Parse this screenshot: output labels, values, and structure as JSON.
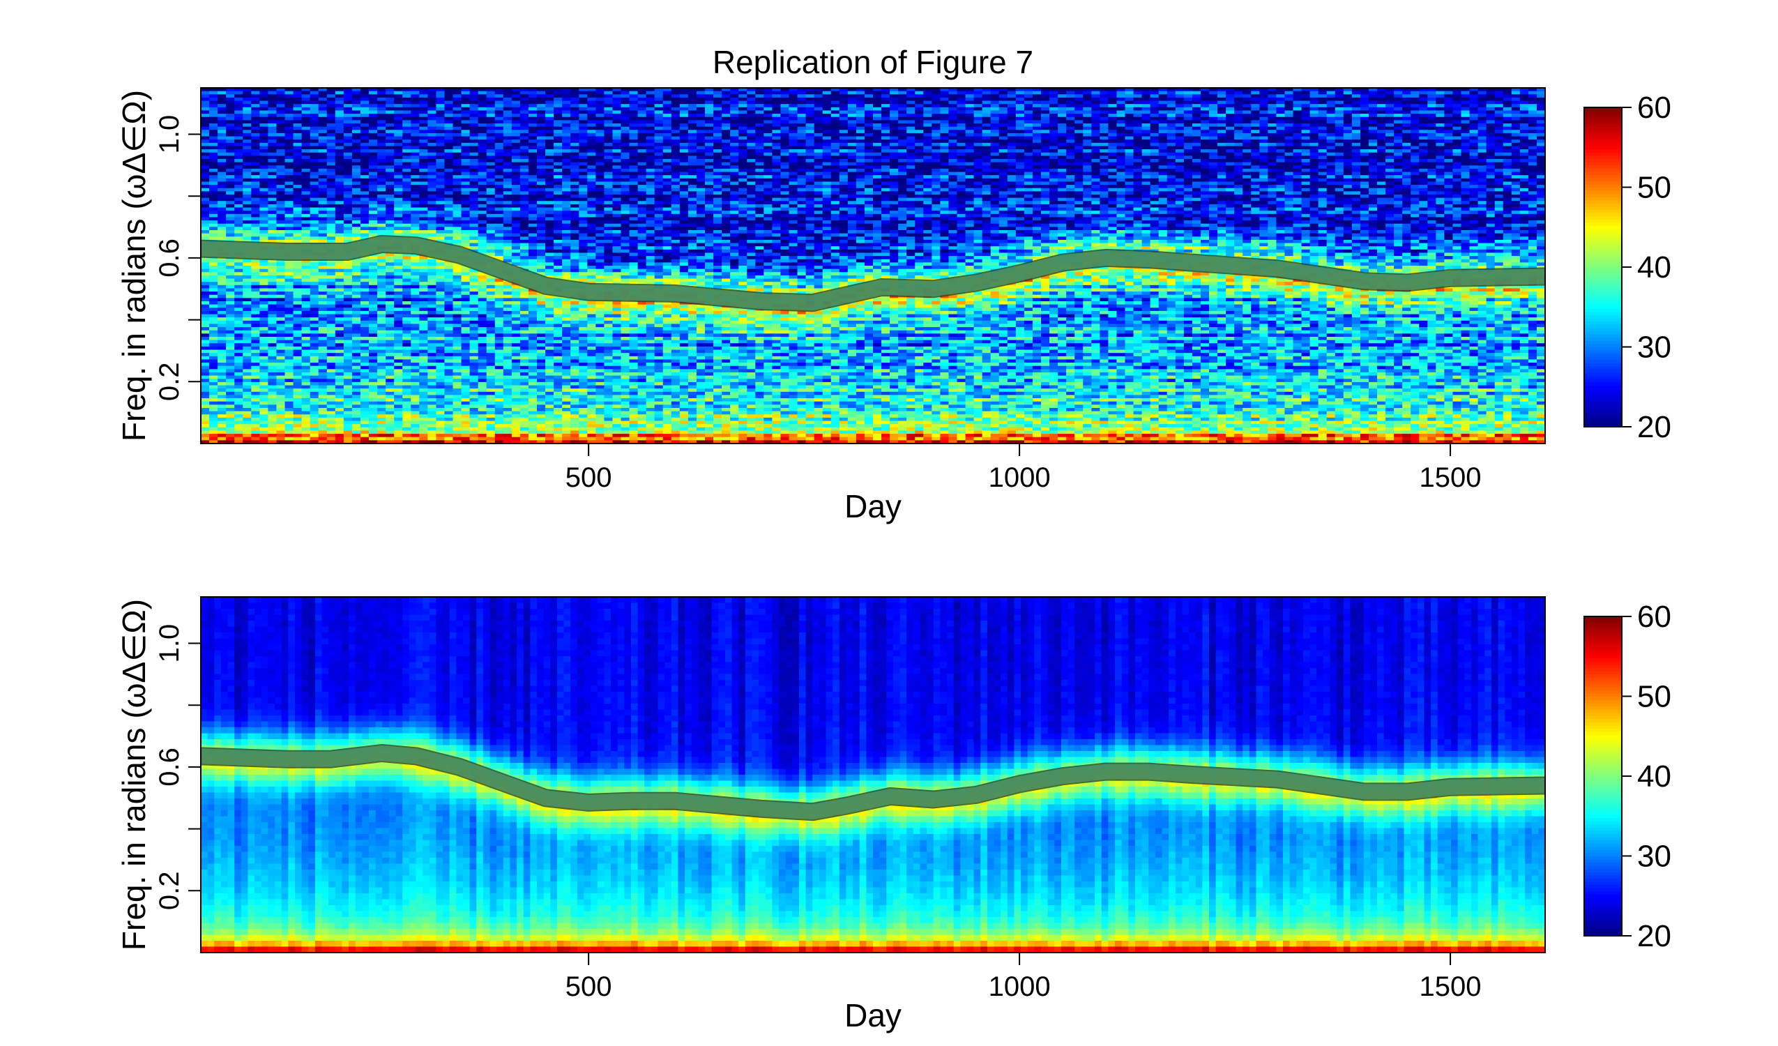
{
  "chart_data": [
    {
      "type": "heatmap",
      "title": "Replication of Figure 7",
      "xlabel": "Day",
      "ylabel": "Freq. in radians (ωΔ∈Ω)",
      "xlim": [
        50,
        1610
      ],
      "ylim": [
        0,
        1.15
      ],
      "x_ticks": [
        500,
        1000,
        1500
      ],
      "y_ticks_labeled": [
        0.2,
        0.6,
        1.0
      ],
      "y_ticks": [
        0.2,
        0.4,
        0.6,
        0.8,
        1.0
      ],
      "colorbar": {
        "min": 20,
        "max": 60,
        "ticks": [
          20,
          30,
          40,
          50,
          60
        ],
        "colormap": "jet"
      },
      "style": "noisy",
      "ridge_curve": {
        "x": [
          50,
          150,
          220,
          260,
          300,
          350,
          400,
          450,
          500,
          600,
          700,
          760,
          800,
          840,
          900,
          950,
          1000,
          1050,
          1100,
          1150,
          1200,
          1300,
          1400,
          1450,
          1500,
          1610
        ],
        "y": [
          0.63,
          0.62,
          0.62,
          0.645,
          0.64,
          0.61,
          0.56,
          0.51,
          0.49,
          0.485,
          0.46,
          0.455,
          0.48,
          0.505,
          0.5,
          0.52,
          0.55,
          0.585,
          0.6,
          0.595,
          0.585,
          0.565,
          0.525,
          0.52,
          0.535,
          0.54
        ]
      }
    },
    {
      "type": "heatmap",
      "title": "",
      "xlabel": "Day",
      "ylabel": "Freq. in radians (ωΔ∈Ω)",
      "xlim": [
        50,
        1610
      ],
      "ylim": [
        0,
        1.15
      ],
      "x_ticks": [
        500,
        1000,
        1500
      ],
      "y_ticks_labeled": [
        0.2,
        0.6,
        1.0
      ],
      "y_ticks": [
        0.2,
        0.4,
        0.6,
        0.8,
        1.0
      ],
      "colorbar": {
        "min": 20,
        "max": 60,
        "ticks": [
          20,
          30,
          40,
          50,
          60
        ],
        "colormap": "jet"
      },
      "style": "smooth",
      "ridge_curve": {
        "x": [
          50,
          150,
          200,
          260,
          300,
          350,
          400,
          450,
          500,
          550,
          600,
          700,
          760,
          800,
          850,
          900,
          950,
          1000,
          1050,
          1100,
          1150,
          1200,
          1300,
          1400,
          1450,
          1500,
          1610
        ],
        "y": [
          0.635,
          0.625,
          0.625,
          0.645,
          0.635,
          0.6,
          0.55,
          0.5,
          0.485,
          0.49,
          0.49,
          0.465,
          0.455,
          0.475,
          0.505,
          0.495,
          0.51,
          0.545,
          0.57,
          0.585,
          0.585,
          0.575,
          0.56,
          0.52,
          0.52,
          0.535,
          0.54
        ]
      }
    }
  ]
}
